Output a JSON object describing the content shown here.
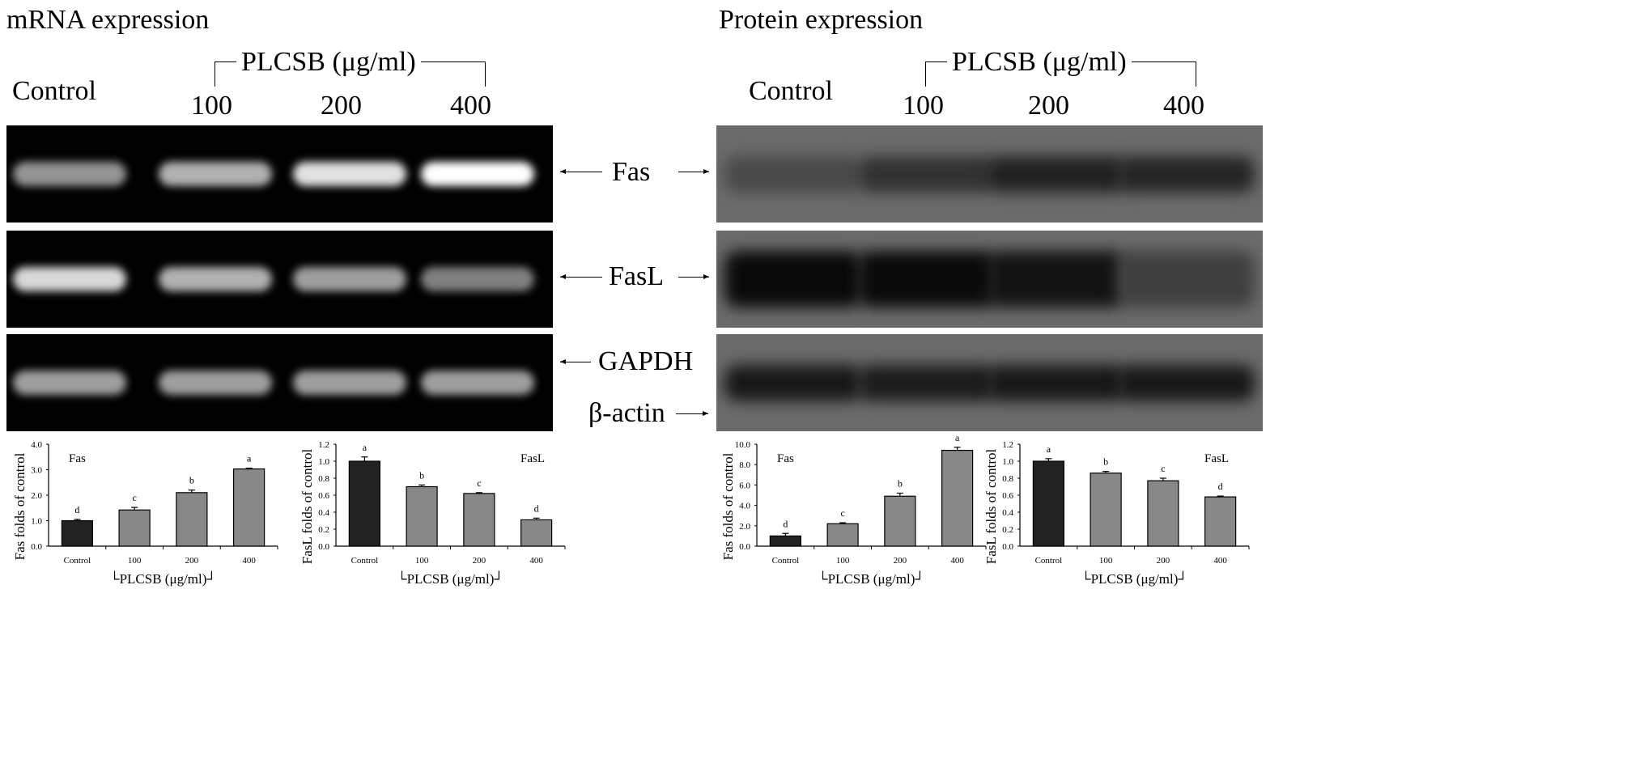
{
  "mrna": {
    "title": "mRNA expression",
    "control": "Control",
    "treatment": "PLCSB  (μg/ml)",
    "doses": [
      "100",
      "200",
      "400"
    ]
  },
  "protein": {
    "title": "Protein expression",
    "control": "Control",
    "treatment": "PLCSB  (μg/ml)",
    "doses": [
      "100",
      "200",
      "400"
    ]
  },
  "labels": {
    "fas": "Fas",
    "fasl": "FasL",
    "gapdh": "GAPDH",
    "bactin": "β-actin"
  },
  "gel_intensity": {
    "mrna_fas": [
      0.45,
      0.6,
      0.85,
      1.0
    ],
    "mrna_fasl": [
      0.8,
      0.6,
      0.5,
      0.35
    ],
    "mrna_gapdh": [
      0.5,
      0.5,
      0.5,
      0.5
    ],
    "protein_fas": [
      0.3,
      0.55,
      0.75,
      0.7
    ],
    "protein_fasl": [
      1.0,
      1.0,
      0.9,
      0.4
    ],
    "protein_bactin": [
      0.85,
      0.8,
      0.85,
      0.85
    ]
  },
  "colors": {
    "control_bar": "#222222",
    "treatment_bar": "#888888"
  },
  "chart_data": [
    {
      "type": "bar",
      "title": "Fas",
      "ylabel": "Fas folds of control",
      "xlabel": "PLCSB (μg/ml)",
      "categories": [
        "Control",
        "100",
        "200",
        "400"
      ],
      "values": [
        1.0,
        1.42,
        2.1,
        3.03
      ],
      "errors": [
        0.05,
        0.1,
        0.1,
        0.03
      ],
      "letters": [
        "d",
        "c",
        "b",
        "a"
      ],
      "ylim": [
        0,
        4
      ],
      "yticks": [
        "0.0",
        "1.0",
        "2.0",
        "3.0",
        "4.0"
      ],
      "title_pos": "left"
    },
    {
      "type": "bar",
      "title": "FasL",
      "ylabel": "FasL folds of control",
      "xlabel": "PLCSB (μg/ml)",
      "categories": [
        "Control",
        "100",
        "200",
        "400"
      ],
      "values": [
        1.0,
        0.7,
        0.62,
        0.31
      ],
      "errors": [
        0.05,
        0.02,
        0.01,
        0.02
      ],
      "letters": [
        "a",
        "b",
        "c",
        "d"
      ],
      "ylim": [
        0,
        1.2
      ],
      "yticks": [
        "0.0",
        "0.2",
        "0.4",
        "0.6",
        "0.8",
        "1.0",
        "1.2"
      ],
      "title_pos": "right"
    },
    {
      "type": "bar",
      "title": "Fas",
      "ylabel": "Fas folds of control",
      "xlabel": "PLCSB (μg/ml)",
      "categories": [
        "Control",
        "100",
        "200",
        "400"
      ],
      "values": [
        1.0,
        2.2,
        4.9,
        9.4
      ],
      "errors": [
        0.25,
        0.1,
        0.3,
        0.3
      ],
      "letters": [
        "d",
        "c",
        "b",
        "a"
      ],
      "ylim": [
        0,
        10
      ],
      "yticks": [
        "0.0",
        "2.0",
        "4.0",
        "6.0",
        "8.0",
        "10.0"
      ],
      "title_pos": "left"
    },
    {
      "type": "bar",
      "title": "FasL",
      "ylabel": "FasL folds of control",
      "xlabel": "PLCSB (μg/ml)",
      "categories": [
        "Control",
        "100",
        "200",
        "400"
      ],
      "values": [
        1.0,
        0.86,
        0.77,
        0.58
      ],
      "errors": [
        0.03,
        0.02,
        0.03,
        0.01
      ],
      "letters": [
        "a",
        "b",
        "c",
        "d"
      ],
      "ylim": [
        0,
        1.2
      ],
      "yticks": [
        "0.0",
        "0.2",
        "0.4",
        "0.6",
        "0.8",
        "1.0",
        "1.2"
      ],
      "title_pos": "right"
    }
  ]
}
